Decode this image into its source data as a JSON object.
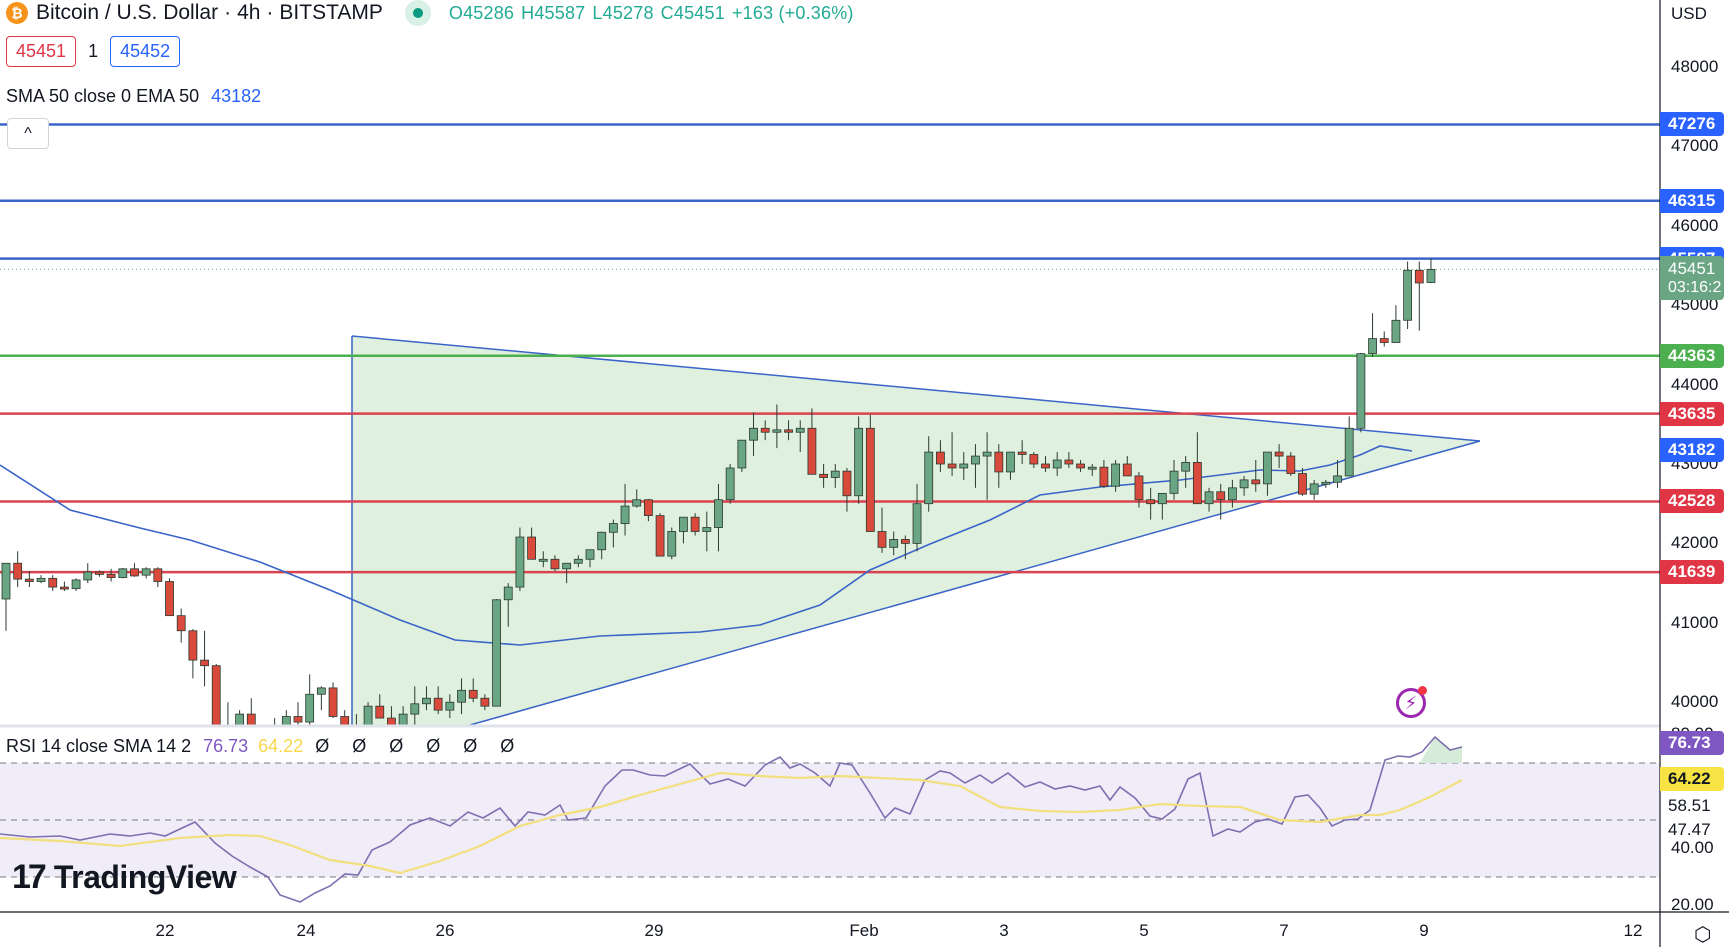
{
  "header": {
    "symbol_icon": "bitcoin-icon",
    "symbol": "Bitcoin / U.S. Dollar",
    "interval": "4h",
    "exchange": "BITSTAMP",
    "sep": "·",
    "ohlc": {
      "open": "O45286",
      "high": "H45587",
      "low": "L45278",
      "close": "C45451",
      "change": "+163 (+0.36%)"
    },
    "sell_price": "45451",
    "spread": "1",
    "buy_price": "45452",
    "indicator_label": "SMA 50 close 0 EMA 50",
    "indicator_value": "43182",
    "collapse_icon": "^"
  },
  "price_axis": {
    "currency": "USD",
    "ticks": [
      "48000",
      "47000",
      "46000",
      "45000",
      "44000",
      "43000",
      "42000",
      "41000",
      "40000"
    ],
    "tags": [
      {
        "label": "47276",
        "color": "#2962ff"
      },
      {
        "label": "46315",
        "color": "#2962ff"
      },
      {
        "label": "45587",
        "color": "#2962ff"
      },
      {
        "label": "45451",
        "sub": "03:16:2",
        "color": "#6aa584"
      },
      {
        "label": "44363",
        "color": "#4caf50"
      },
      {
        "label": "43635",
        "color": "#e03545"
      },
      {
        "label": "43182",
        "color": "#2962ff"
      },
      {
        "label": "42528",
        "color": "#e03545"
      },
      {
        "label": "41639",
        "color": "#e03545"
      }
    ]
  },
  "rsi": {
    "label": "RSI 14 close SMA 14 2",
    "value": "76.73",
    "sma_value": "64.22",
    "na_values": "Ø Ø Ø Ø Ø Ø",
    "axis_ticks": [
      "80.00",
      "40.00",
      "20.00"
    ],
    "tags": [
      {
        "label": "76.73",
        "bg": "#7e57c2",
        "color": "#ffffff"
      },
      {
        "label": "64.22",
        "bg": "#f7e344",
        "color": "#131722"
      },
      {
        "label": "58.51",
        "bg": "transparent",
        "color": "#131722"
      },
      {
        "label": "47.47",
        "bg": "transparent",
        "color": "#131722"
      }
    ]
  },
  "time_axis": {
    "labels": [
      "22",
      "24",
      "26",
      "29",
      "Feb",
      "3",
      "5",
      "7",
      "9",
      "12"
    ]
  },
  "branding": {
    "logo_text": "TradingView",
    "logo_mark": "17"
  },
  "icons": {
    "settings": "settings-icon",
    "alert": "lightning-alert-icon"
  },
  "colors": {
    "up": "#6aa584",
    "down": "#d94a3d",
    "resistance": "#3a64c8",
    "support_green": "#4caf50",
    "support_red": "#d9424f",
    "triangle_fill": "#dff0de",
    "triangle_stroke": "#3a64c8",
    "ema": "#3a64c8",
    "rsi": "#7e6fb0",
    "rsi_sma": "#f3df7e",
    "rsi_band": "#f0ecf8"
  },
  "chart_data": {
    "type": "candlestick",
    "title": "Bitcoin / U.S. Dollar · 4h · BITSTAMP",
    "ylabel": "USD",
    "ylim": [
      39500,
      48600
    ],
    "x_tick_labels": [
      "22",
      "24",
      "26",
      "29",
      "Feb",
      "3",
      "5",
      "7",
      "9",
      "12"
    ],
    "horizontal_levels": [
      {
        "price": 47276,
        "color": "blue"
      },
      {
        "price": 46315,
        "color": "blue"
      },
      {
        "price": 45587,
        "color": "blue"
      },
      {
        "price": 44363,
        "color": "green"
      },
      {
        "price": 43635,
        "color": "red"
      },
      {
        "price": 42528,
        "color": "red"
      },
      {
        "price": 41639,
        "color": "red"
      }
    ],
    "ema50_last": 43182,
    "last_price": 45451,
    "countdown": "03:16:2",
    "candles_ohlc": [
      [
        41300,
        41750,
        40900,
        41750
      ],
      [
        41750,
        41900,
        41450,
        41550
      ],
      [
        41550,
        41650,
        41450,
        41520
      ],
      [
        41520,
        41600,
        41500,
        41560
      ],
      [
        41560,
        41600,
        41400,
        41450
      ],
      [
        41450,
        41520,
        41400,
        41430
      ],
      [
        41430,
        41560,
        41400,
        41540
      ],
      [
        41540,
        41750,
        41500,
        41640
      ],
      [
        41640,
        41660,
        41580,
        41610
      ],
      [
        41610,
        41680,
        41520,
        41570
      ],
      [
        41570,
        41690,
        41560,
        41680
      ],
      [
        41680,
        41750,
        41580,
        41590
      ],
      [
        41600,
        41700,
        41560,
        41680
      ],
      [
        41680,
        41700,
        41450,
        41520
      ],
      [
        41520,
        41560,
        41100,
        41090
      ],
      [
        41090,
        41180,
        40750,
        40900
      ],
      [
        40900,
        40920,
        40300,
        40530
      ],
      [
        40530,
        40900,
        40200,
        40460
      ],
      [
        40460,
        40480,
        39400,
        39520
      ],
      [
        39520,
        40000,
        39300,
        39460
      ],
      [
        39460,
        39900,
        39650,
        39850
      ],
      [
        39850,
        40050,
        39650,
        39650
      ],
      [
        39650,
        39700,
        39500,
        39600
      ],
      [
        39600,
        39800,
        39400,
        39700
      ],
      [
        39700,
        39900,
        39600,
        39820
      ],
      [
        39820,
        40000,
        39600,
        39750
      ],
      [
        39750,
        40350,
        39650,
        40100
      ],
      [
        40100,
        40200,
        39900,
        40180
      ],
      [
        40180,
        40250,
        39800,
        39820
      ],
      [
        39820,
        39900,
        39650,
        39650
      ],
      [
        39650,
        39850,
        39500,
        39700
      ],
      [
        39700,
        40000,
        39600,
        39950
      ],
      [
        39950,
        40100,
        39800,
        39800
      ],
      [
        39800,
        39950,
        39600,
        39650
      ],
      [
        39650,
        39950,
        39500,
        39850
      ],
      [
        39850,
        40200,
        39700,
        39980
      ],
      [
        39980,
        40200,
        39900,
        40050
      ],
      [
        40050,
        40200,
        39850,
        39900
      ],
      [
        39900,
        40100,
        39800,
        40000
      ],
      [
        40000,
        40300,
        39850,
        40150
      ],
      [
        40150,
        40300,
        40000,
        40050
      ],
      [
        40050,
        40100,
        39900,
        39950
      ],
      [
        39950,
        41300,
        39950,
        41290
      ],
      [
        41290,
        41500,
        40950,
        41450
      ],
      [
        41450,
        42200,
        41400,
        42080
      ],
      [
        42080,
        42200,
        41800,
        41800
      ],
      [
        41800,
        41900,
        41700,
        41800
      ],
      [
        41800,
        41850,
        41650,
        41680
      ],
      [
        41680,
        41750,
        41500,
        41750
      ],
      [
        41750,
        41850,
        41700,
        41800
      ],
      [
        41800,
        41900,
        41700,
        41920
      ],
      [
        41920,
        42150,
        41800,
        42140
      ],
      [
        42140,
        42300,
        41950,
        42250
      ],
      [
        42250,
        42750,
        42100,
        42470
      ],
      [
        42470,
        42680,
        42450,
        42550
      ],
      [
        42550,
        42560,
        42280,
        42350
      ],
      [
        42350,
        42380,
        42100,
        41840
      ],
      [
        41840,
        42200,
        41800,
        42150
      ],
      [
        42150,
        42300,
        42000,
        42330
      ],
      [
        42330,
        42380,
        42100,
        42150
      ],
      [
        42150,
        42400,
        41900,
        42200
      ],
      [
        42200,
        42750,
        41900,
        42550
      ],
      [
        42550,
        43000,
        42500,
        42950
      ],
      [
        42950,
        43300,
        42900,
        43300
      ],
      [
        43300,
        43650,
        43100,
        43450
      ],
      [
        43450,
        43550,
        43300,
        43400
      ],
      [
        43400,
        43750,
        43200,
        43430
      ],
      [
        43430,
        43550,
        43300,
        43400
      ],
      [
        43400,
        43550,
        43150,
        43450
      ],
      [
        43450,
        43700,
        43100,
        42870
      ],
      [
        42870,
        43000,
        42700,
        42830
      ],
      [
        42830,
        43000,
        42700,
        42910
      ],
      [
        42910,
        42950,
        42400,
        42600
      ],
      [
        42600,
        43600,
        42500,
        43450
      ],
      [
        43450,
        43620,
        42900,
        42150
      ],
      [
        42150,
        42450,
        41880,
        41950
      ],
      [
        41950,
        42150,
        41850,
        42050
      ],
      [
        42050,
        42100,
        41800,
        42000
      ],
      [
        42000,
        42750,
        41900,
        42500
      ],
      [
        42500,
        43350,
        42400,
        43150
      ],
      [
        43150,
        43300,
        42900,
        43000
      ],
      [
        43000,
        43400,
        42850,
        42950
      ],
      [
        42950,
        43150,
        42800,
        43000
      ],
      [
        43000,
        43250,
        42700,
        43100
      ],
      [
        43100,
        43400,
        42550,
        43150
      ],
      [
        43150,
        43250,
        42700,
        42900
      ],
      [
        42900,
        43150,
        42800,
        43150
      ],
      [
        43150,
        43300,
        43000,
        43120
      ],
      [
        43120,
        43150,
        42950,
        43000
      ],
      [
        43000,
        43100,
        42900,
        42950
      ],
      [
        42950,
        43150,
        42850,
        43050
      ],
      [
        43050,
        43150,
        42950,
        43000
      ],
      [
        43000,
        43050,
        42900,
        42950
      ],
      [
        42950,
        43000,
        42850,
        42960
      ],
      [
        42960,
        43050,
        42700,
        42720
      ],
      [
        42720,
        43050,
        42650,
        43000
      ],
      [
        43000,
        43100,
        42850,
        42850
      ],
      [
        42850,
        42900,
        42450,
        42550
      ],
      [
        42550,
        42700,
        42300,
        42500
      ],
      [
        42500,
        42600,
        42300,
        42630
      ],
      [
        42630,
        43050,
        42550,
        42910
      ],
      [
        42910,
        43100,
        42700,
        43020
      ],
      [
        43020,
        43400,
        42600,
        42500
      ],
      [
        42500,
        42700,
        42400,
        42650
      ],
      [
        42650,
        42750,
        42300,
        42550
      ],
      [
        42550,
        42800,
        42450,
        42700
      ],
      [
        42700,
        42850,
        42600,
        42800
      ],
      [
        42800,
        43050,
        42650,
        42750
      ],
      [
        42750,
        43100,
        42600,
        43150
      ],
      [
        43150,
        43250,
        42950,
        43100
      ],
      [
        43100,
        43150,
        42850,
        42880
      ],
      [
        42880,
        42950,
        42600,
        42620
      ],
      [
        42620,
        42800,
        42550,
        42750
      ],
      [
        42750,
        42800,
        42700,
        42770
      ],
      [
        42770,
        43050,
        42700,
        42850
      ],
      [
        42850,
        43600,
        42850,
        43450
      ],
      [
        43450,
        44400,
        43400,
        44390
      ],
      [
        44390,
        44900,
        44350,
        44580
      ],
      [
        44580,
        44670,
        44480,
        44530
      ],
      [
        44530,
        45000,
        44550,
        44810
      ],
      [
        44810,
        45550,
        44700,
        45440
      ],
      [
        45440,
        45550,
        44680,
        45280
      ],
      [
        45286,
        45587,
        45278,
        45451
      ]
    ],
    "rsi_series": {
      "name": "RSI 14",
      "last": 76.73,
      "sma_name": "SMA 14",
      "sma_last": 64.22,
      "levels": [
        70,
        50,
        30
      ]
    }
  }
}
